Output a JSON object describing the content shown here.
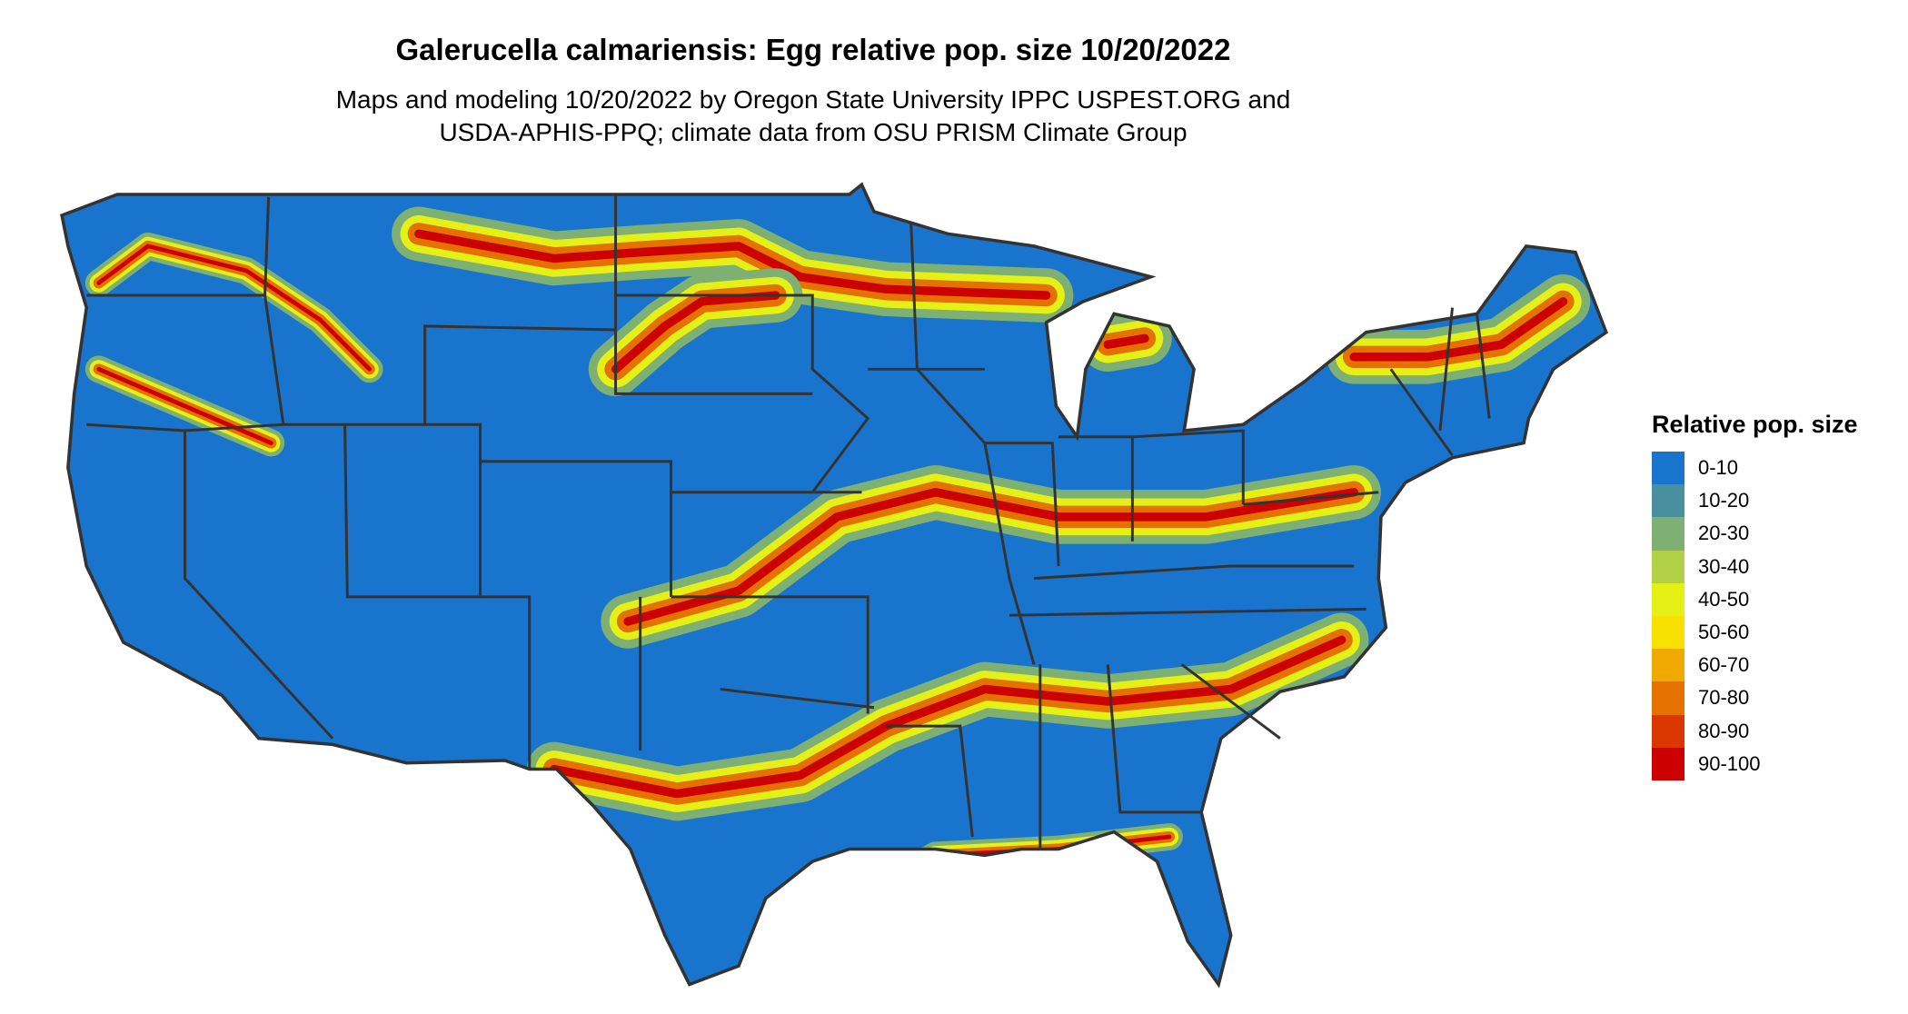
{
  "title": "Galerucella calmariensis: Egg relative pop. size 10/20/2022",
  "subtitle_lines": [
    "Maps and modeling 10/20/2022 by Oregon State University IPPC USPEST.ORG and",
    "USDA-APHIS-PPQ; climate data from OSU PRISM Climate Group"
  ],
  "chart_data": {
    "type": "choropleth-raster",
    "region": "Contiguous United States",
    "legend": {
      "title": "Relative pop. size",
      "placement": "right",
      "classes": [
        {
          "label": "0-10",
          "color": "#1874CD"
        },
        {
          "label": "10-20",
          "color": "#4A8F9E"
        },
        {
          "label": "20-30",
          "color": "#7DB072"
        },
        {
          "label": "30-40",
          "color": "#B2D147"
        },
        {
          "label": "40-50",
          "color": "#E5F016"
        },
        {
          "label": "50-60",
          "color": "#F8E000"
        },
        {
          "label": "60-70",
          "color": "#EEAA00"
        },
        {
          "label": "70-80",
          "color": "#E37200"
        },
        {
          "label": "80-90",
          "color": "#DA3800"
        },
        {
          "label": "90-100",
          "color": "#CC0000"
        }
      ]
    }
  }
}
